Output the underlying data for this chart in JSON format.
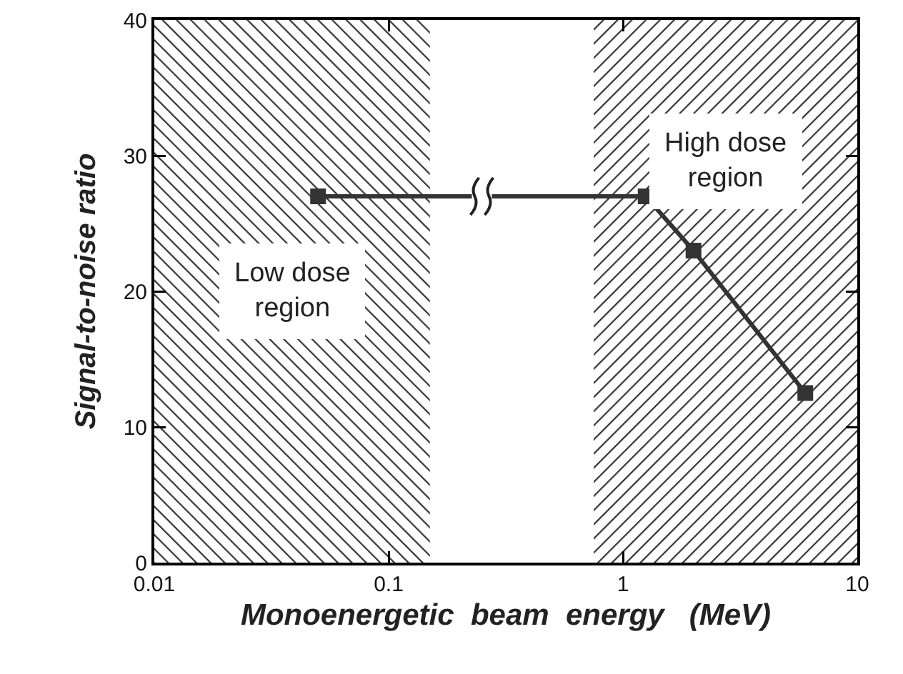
{
  "chart_data": {
    "type": "line",
    "xlabel": "Monoenergetic  beam  energy   (MeV)",
    "ylabel": "Signal-to-noise ratio",
    "x": [
      0.05,
      1.25,
      2,
      6
    ],
    "series": [
      {
        "color": "#333333",
        "values": [
          27,
          27,
          23,
          12.5
        ]
      }
    ],
    "log": "x",
    "xlim": [
      0.01,
      10
    ],
    "xticks": [
      0.01,
      0.1,
      1,
      10
    ],
    "ylim": [
      0,
      40
    ],
    "yticks": [
      0,
      10,
      20,
      30,
      40
    ],
    "bands": [
      {
        "axis": "x",
        "from": 0.01,
        "to": 0.15,
        "label": "Low dose region",
        "color": "#333333"
      },
      {
        "axis": "x",
        "from": 0.75,
        "to": 10,
        "label": "High dose region",
        "color": "#333333"
      }
    ],
    "grid": false,
    "marker": "square",
    "line_style": "solid"
  }
}
